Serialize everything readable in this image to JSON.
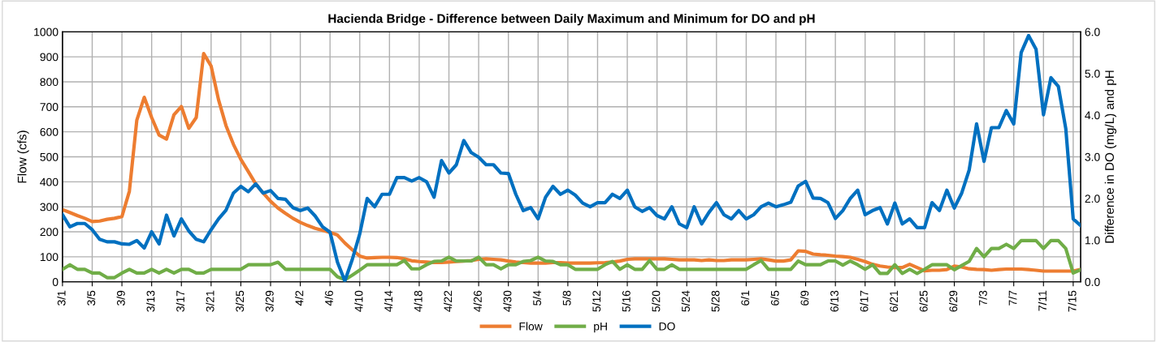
{
  "chart_data": {
    "type": "line",
    "title": "Hacienda Bridge - Difference between Daily Maximum and Minimum for DO and pH",
    "ylabel": "Flow (cfs)",
    "y2label": "Difference in DO (mg/L) and pH",
    "categories": [
      "3/1",
      null,
      null,
      null,
      "3/5",
      null,
      null,
      null,
      "3/9",
      null,
      null,
      null,
      "3/13",
      null,
      null,
      null,
      "3/17",
      null,
      null,
      null,
      "3/21",
      null,
      null,
      null,
      "3/25",
      null,
      null,
      null,
      "3/29",
      null,
      null,
      null,
      "4/2",
      null,
      null,
      null,
      "4/6",
      null,
      null,
      null,
      "4/10",
      null,
      null,
      null,
      "4/14",
      null,
      null,
      null,
      "4/18",
      null,
      null,
      null,
      "4/22",
      null,
      null,
      null,
      "4/26",
      null,
      null,
      null,
      "4/30",
      null,
      null,
      null,
      "5/4",
      null,
      null,
      null,
      "5/8",
      null,
      null,
      null,
      "5/12",
      null,
      null,
      null,
      "5/16",
      null,
      null,
      null,
      "5/20",
      null,
      null,
      null,
      "5/24",
      null,
      null,
      null,
      "5/28",
      null,
      null,
      null,
      "6/1",
      null,
      null,
      null,
      "6/5",
      null,
      null,
      null,
      "6/9",
      null,
      null,
      null,
      "6/13",
      null,
      null,
      null,
      "6/17",
      null,
      null,
      null,
      "6/21",
      null,
      null,
      null,
      "6/25",
      null,
      null,
      null,
      "6/29",
      null,
      null,
      null,
      "7/3",
      null,
      null,
      null,
      "7/7",
      null,
      null,
      null,
      "7/11",
      null,
      null,
      null,
      "7/15",
      null
    ],
    "series": [
      {
        "name": "Flow",
        "color": "#ed7d31",
        "values": [
          289,
          277,
          265,
          254,
          241,
          243,
          250,
          254,
          261,
          362,
          646,
          738,
          657,
          587,
          571,
          668,
          701,
          614,
          657,
          913,
          863,
          728,
          625,
          550,
          490,
          441,
          392,
          355,
          322,
          295,
          274,
          254,
          238,
          225,
          214,
          206,
          198,
          187,
          155,
          128,
          103,
          95,
          97,
          98,
          98,
          97,
          92,
          84,
          81,
          79,
          77,
          77,
          79,
          81,
          83,
          85,
          90,
          92,
          90,
          88,
          83,
          79,
          77,
          75,
          75,
          75,
          77,
          77,
          75,
          75,
          75,
          75,
          76,
          77,
          79,
          83,
          90,
          92,
          92,
          92,
          92,
          92,
          90,
          88,
          88,
          88,
          85,
          88,
          85,
          85,
          88,
          88,
          88,
          90,
          92,
          88,
          83,
          83,
          88,
          124,
          122,
          111,
          108,
          106,
          103,
          101,
          98,
          90,
          81,
          70,
          63,
          59,
          57,
          57,
          70,
          57,
          44,
          46,
          46,
          49,
          63,
          59,
          52,
          50,
          49,
          46,
          49,
          51,
          51,
          51,
          49,
          46,
          43,
          43,
          43,
          43,
          43,
          50
        ]
      },
      {
        "name": "pH",
        "color": "#70ad47",
        "axis": "y2",
        "values": [
          0.3,
          0.41,
          0.3,
          0.3,
          0.21,
          0.21,
          0.1,
          0.1,
          0.21,
          0.3,
          0.21,
          0.21,
          0.3,
          0.21,
          0.3,
          0.21,
          0.3,
          0.3,
          0.21,
          0.21,
          0.3,
          0.3,
          0.3,
          0.3,
          0.3,
          0.41,
          0.41,
          0.41,
          0.41,
          0.47,
          0.3,
          0.3,
          0.3,
          0.3,
          0.3,
          0.3,
          0.3,
          0.12,
          0.05,
          0.16,
          0.28,
          0.41,
          0.41,
          0.41,
          0.41,
          0.41,
          0.51,
          0.31,
          0.31,
          0.41,
          0.49,
          0.5,
          0.59,
          0.5,
          0.5,
          0.5,
          0.59,
          0.41,
          0.41,
          0.31,
          0.41,
          0.41,
          0.49,
          0.51,
          0.59,
          0.5,
          0.49,
          0.41,
          0.41,
          0.3,
          0.3,
          0.3,
          0.3,
          0.41,
          0.49,
          0.3,
          0.41,
          0.3,
          0.3,
          0.51,
          0.3,
          0.3,
          0.41,
          0.3,
          0.3,
          0.3,
          0.3,
          0.3,
          0.3,
          0.3,
          0.3,
          0.3,
          0.3,
          0.41,
          0.51,
          0.3,
          0.3,
          0.3,
          0.3,
          0.5,
          0.41,
          0.41,
          0.41,
          0.5,
          0.5,
          0.4,
          0.5,
          0.41,
          0.3,
          0.41,
          0.2,
          0.2,
          0.41,
          0.2,
          0.3,
          0.2,
          0.3,
          0.41,
          0.41,
          0.41,
          0.29,
          0.39,
          0.49,
          0.8,
          0.6,
          0.8,
          0.8,
          0.9,
          0.8,
          0.99,
          0.99,
          0.99,
          0.8,
          0.99,
          0.99,
          0.8,
          0.21,
          0.29
        ]
      },
      {
        "name": "DO",
        "color": "#0070c0",
        "axis": "y2",
        "values": [
          1.61,
          1.32,
          1.4,
          1.4,
          1.25,
          1.02,
          0.96,
          0.96,
          0.91,
          0.9,
          0.99,
          0.81,
          1.2,
          0.91,
          1.6,
          1.1,
          1.51,
          1.22,
          1.02,
          0.96,
          1.25,
          1.51,
          1.72,
          2.13,
          2.29,
          2.16,
          2.35,
          2.13,
          2.19,
          2.0,
          1.98,
          1.78,
          1.71,
          1.77,
          1.58,
          1.32,
          1.19,
          0.47,
          0.02,
          0.54,
          1.15,
          2.0,
          1.8,
          2.1,
          2.1,
          2.5,
          2.5,
          2.42,
          2.5,
          2.4,
          2.03,
          2.91,
          2.61,
          2.81,
          3.39,
          3.1,
          2.99,
          2.81,
          2.81,
          2.61,
          2.6,
          2.1,
          1.71,
          1.78,
          1.51,
          2.03,
          2.29,
          2.1,
          2.2,
          2.08,
          1.89,
          1.8,
          1.9,
          1.9,
          2.1,
          2.0,
          2.2,
          1.8,
          1.69,
          1.78,
          1.59,
          1.51,
          1.8,
          1.39,
          1.3,
          1.8,
          1.39,
          1.67,
          1.9,
          1.61,
          1.51,
          1.71,
          1.51,
          1.61,
          1.8,
          1.89,
          1.8,
          1.85,
          1.91,
          2.3,
          2.41,
          2.01,
          2.0,
          1.9,
          1.52,
          1.71,
          2.0,
          2.2,
          1.61,
          1.71,
          1.78,
          1.39,
          1.89,
          1.39,
          1.51,
          1.3,
          1.3,
          1.9,
          1.71,
          2.2,
          1.77,
          2.13,
          2.68,
          3.79,
          2.89,
          3.7,
          3.7,
          4.11,
          3.79,
          5.5,
          5.91,
          5.58,
          4.01,
          4.9,
          4.69,
          3.68,
          1.51,
          1.35
        ]
      }
    ],
    "ylim": [
      0,
      1000
    ],
    "yticks": [
      0,
      100,
      200,
      300,
      400,
      500,
      600,
      700,
      800,
      900,
      1000
    ],
    "y2lim": [
      0,
      6
    ],
    "y2ticks": [
      {
        "value": 0,
        "label": "0.0"
      },
      {
        "value": 1,
        "label": "1.0"
      },
      {
        "value": 2,
        "label": "2.0"
      },
      {
        "value": 3,
        "label": "3.0"
      },
      {
        "value": 4,
        "label": "4.0"
      },
      {
        "value": 5,
        "label": "5.0"
      },
      {
        "value": 6,
        "label": "6.0"
      }
    ],
    "grid": true,
    "legend": "bottom",
    "marker": "none",
    "line_style": "solid"
  }
}
